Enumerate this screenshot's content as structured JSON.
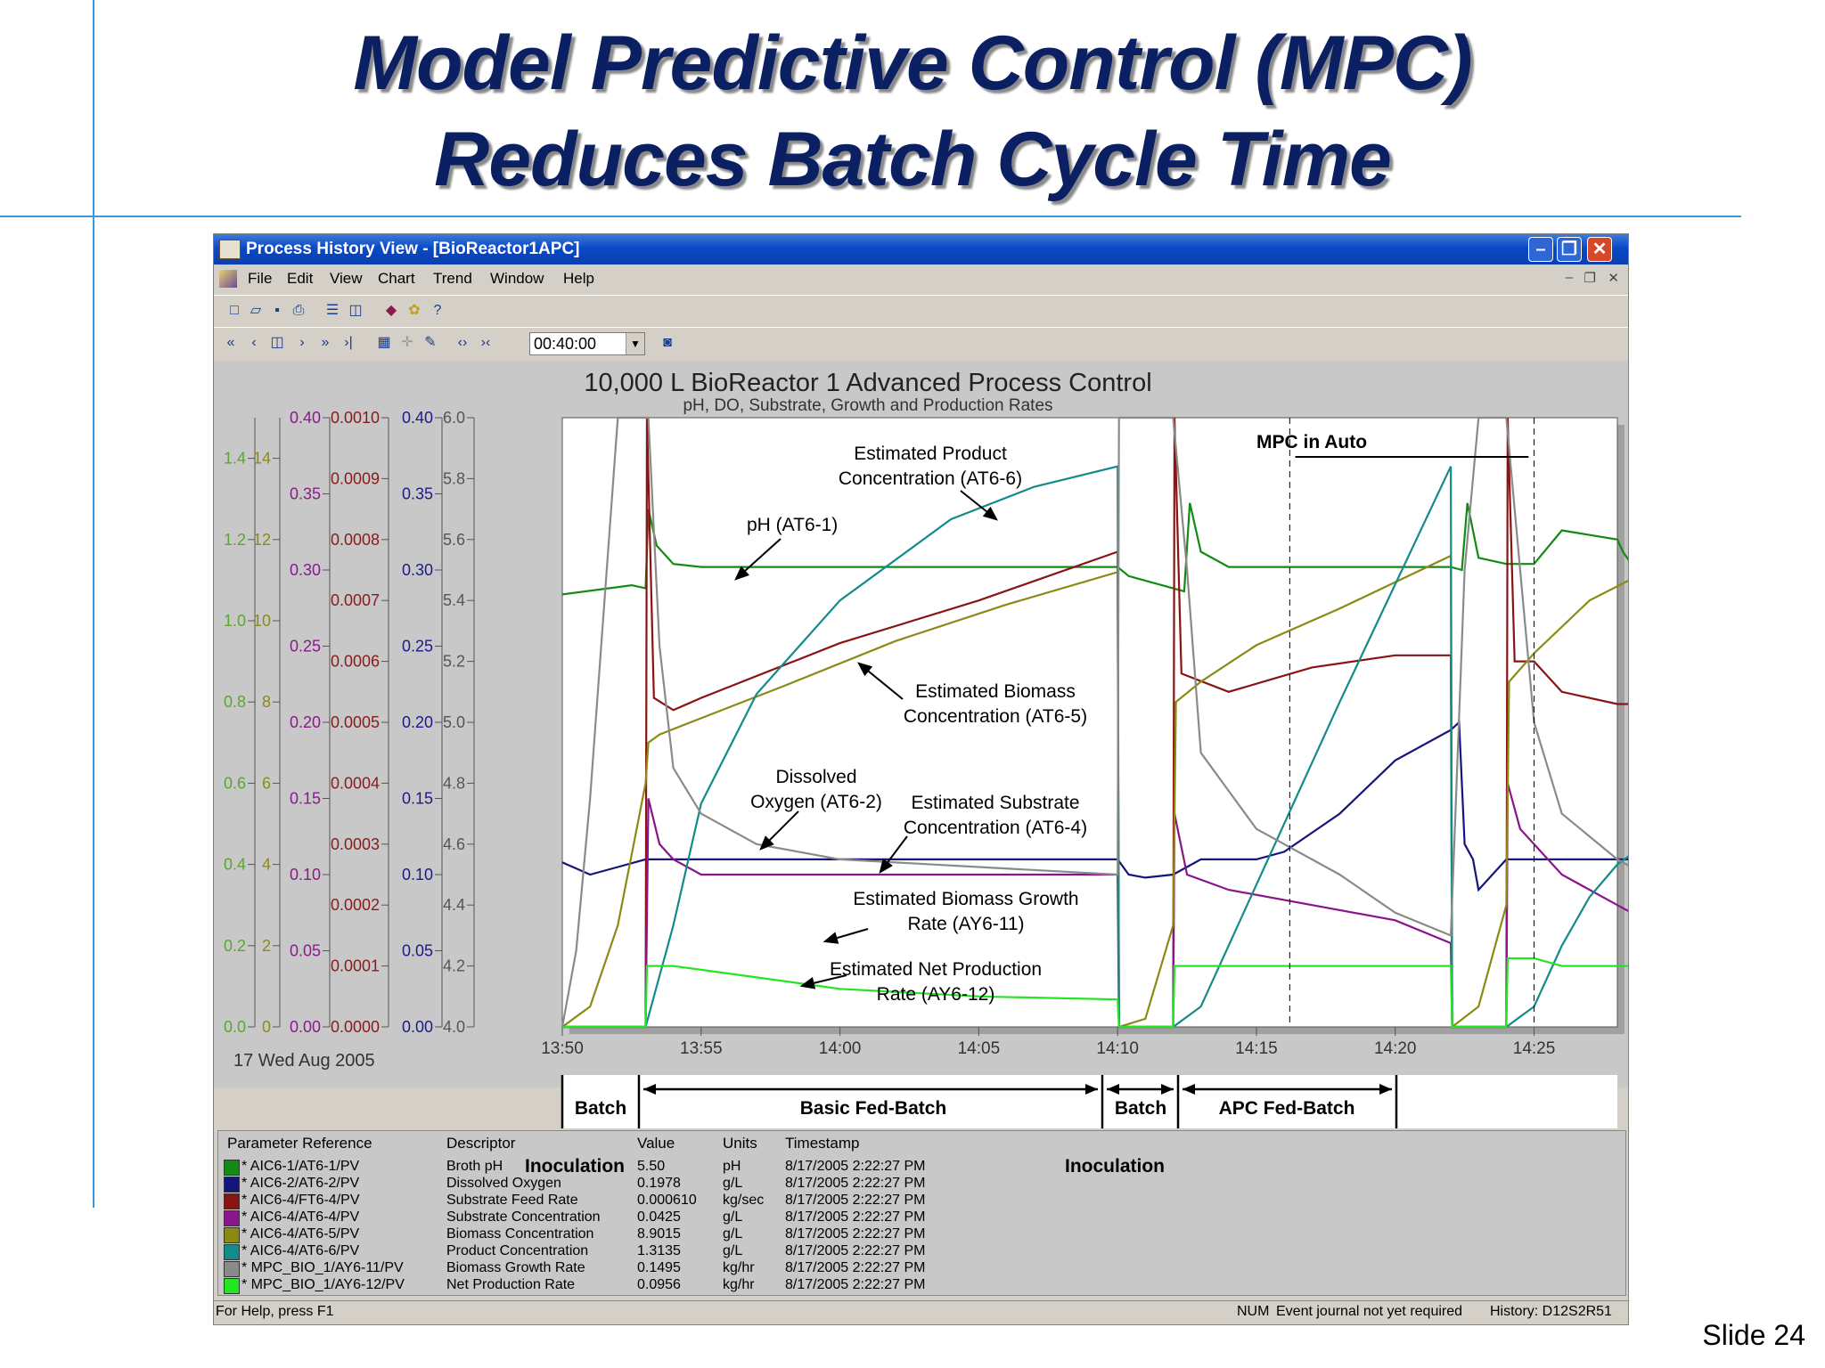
{
  "slide": {
    "title_line1": "Model Predictive Control (MPC)",
    "title_line2": "Reduces Batch Cycle Time",
    "slide_number": "Slide 24"
  },
  "window": {
    "title": "Process History View - [BioReactor1APC]",
    "menus": [
      "File",
      "Edit",
      "View",
      "Chart",
      "Trend",
      "Window",
      "Help"
    ],
    "time_span": "00:40:00",
    "status_left": "For Help, press F1",
    "status_num": "NUM",
    "status_event": "Event journal not yet required",
    "status_history": "History: D12S2R51"
  },
  "chart_data": {
    "type": "line",
    "title": "10,000 L BioReactor 1 Advanced Process Control",
    "subtitle": "pH, DO, Substrate, Growth and Production Rates",
    "date_label": "17 Wed Aug 2005",
    "x_ticks": [
      "13:50",
      "13:55",
      "14:00",
      "14:05",
      "14:10",
      "14:15",
      "14:20",
      "14:25"
    ],
    "xlim": [
      "13:50",
      "14:28"
    ],
    "axes": [
      {
        "color": "#5aa62e",
        "ticks": [
          "0.0",
          "0.2",
          "0.4",
          "0.6",
          "0.8",
          "1.0",
          "1.2",
          "1.4"
        ],
        "range": [
          0,
          1.5
        ]
      },
      {
        "color": "#8a8a1a",
        "ticks": [
          "0",
          "2",
          "4",
          "6",
          "8",
          "10",
          "12",
          "14"
        ],
        "range": [
          0,
          15
        ]
      },
      {
        "color": "#8a1a8a",
        "ticks": [
          "0.00",
          "0.05",
          "0.10",
          "0.15",
          "0.20",
          "0.25",
          "0.30",
          "0.35",
          "0.40"
        ],
        "range": [
          0,
          0.4
        ]
      },
      {
        "color": "#8a1a1a",
        "ticks": [
          "0.0000",
          "0.0001",
          "0.0002",
          "0.0003",
          "0.0004",
          "0.0005",
          "0.0006",
          "0.0007",
          "0.0008",
          "0.0009",
          "0.0010"
        ],
        "range": [
          0,
          0.001
        ]
      },
      {
        "color": "#1a1a8a",
        "ticks": [
          "0.00",
          "0.05",
          "0.10",
          "0.15",
          "0.20",
          "0.25",
          "0.30",
          "0.35",
          "0.40"
        ],
        "range": [
          0,
          0.4
        ]
      },
      {
        "color": "#555555",
        "ticks": [
          "4.0",
          "4.2",
          "4.4",
          "4.6",
          "4.8",
          "5.0",
          "5.2",
          "5.4",
          "5.6",
          "5.8",
          "6.0"
        ],
        "range": [
          4.0,
          6.0
        ]
      }
    ],
    "grid": false,
    "series": [
      {
        "name": "pH (AT6-1)",
        "color": "#138a13",
        "x": [
          0,
          2.5,
          3.0,
          3.1,
          3.4,
          4.0,
          5.0,
          20.0,
          20.4,
          22.4,
          22.6,
          23.0,
          24.0,
          25.0,
          32.0,
          32.4,
          32.6,
          33.0,
          34.0,
          35.0,
          36.0,
          38.0,
          38.2,
          38.5,
          39.0
        ],
        "y": [
          5.42,
          5.45,
          5.44,
          5.7,
          5.58,
          5.52,
          5.51,
          5.51,
          5.48,
          5.43,
          5.72,
          5.56,
          5.51,
          5.51,
          5.51,
          5.5,
          5.72,
          5.54,
          5.52,
          5.52,
          5.63,
          5.6,
          5.56,
          5.52,
          5.52
        ]
      },
      {
        "name": "Dissolved Oxygen (AT6-2)",
        "color": "#14147a",
        "x": [
          0,
          1.0,
          2.0,
          3.0,
          4.0,
          20.0,
          20.4,
          21.0,
          22.0,
          23.0,
          24.0,
          25.0,
          26.0,
          28.0,
          30.0,
          32.0,
          32.3,
          32.5,
          32.8,
          33.0,
          34.0,
          36.0,
          38.0,
          38.5,
          39.0
        ],
        "y": [
          0.108,
          0.1,
          0.105,
          0.11,
          0.11,
          0.11,
          0.1,
          0.098,
          0.1,
          0.11,
          0.11,
          0.11,
          0.115,
          0.14,
          0.175,
          0.195,
          0.2,
          0.12,
          0.11,
          0.09,
          0.11,
          0.11,
          0.11,
          0.11,
          0.11
        ]
      },
      {
        "name": "Substrate Feed Rate",
        "color": "#8a1414",
        "x": [
          0,
          3.0,
          3.05,
          3.3,
          4.0,
          5.0,
          10.0,
          15.0,
          20.0,
          20.05,
          22.0,
          22.05,
          22.3,
          24.0,
          27.0,
          30.0,
          32.0,
          32.05,
          34.0,
          34.05,
          34.3,
          35.0,
          36.0,
          38.0,
          38.5,
          39.0
        ],
        "y": [
          0.0,
          0.0,
          0.001,
          0.00054,
          0.00052,
          0.00054,
          0.00063,
          0.0007,
          0.00078,
          0.0,
          0.0,
          0.001,
          0.00058,
          0.00055,
          0.00059,
          0.00061,
          0.00061,
          0.0,
          0.0,
          0.001,
          0.0006,
          0.0006,
          0.00055,
          0.00053,
          0.00053,
          0.00053
        ]
      },
      {
        "name": "Estimated Substrate Concentration (AT6-4)",
        "color": "#8a148a",
        "x": [
          0,
          2.0,
          3.0,
          3.1,
          3.5,
          4.0,
          5.0,
          20.0,
          20.05,
          22.0,
          22.05,
          22.5,
          24.0,
          27.0,
          30.0,
          32.0,
          32.05,
          34.0,
          34.05,
          34.5,
          36.0,
          38.0,
          39.0
        ],
        "y": [
          0.0,
          0.0,
          0.0,
          0.15,
          0.12,
          0.11,
          0.1,
          0.1,
          0.0,
          0.0,
          0.14,
          0.1,
          0.09,
          0.08,
          0.07,
          0.055,
          0.0,
          0.0,
          0.16,
          0.13,
          0.1,
          0.08,
          0.07
        ]
      },
      {
        "name": "Estimated Biomass Concentration (AT6-5)",
        "color": "#8a8a14",
        "x": [
          0,
          1.0,
          2.0,
          3.0,
          3.1,
          3.5,
          5.0,
          8.0,
          12.0,
          16.0,
          20.0,
          20.05,
          21.0,
          22.0,
          22.1,
          23.0,
          25.0,
          28.0,
          32.0,
          32.05,
          33.0,
          34.0,
          34.1,
          35.0,
          37.0,
          39.0
        ],
        "y": [
          0.0,
          0.5,
          2.5,
          6.0,
          7.0,
          7.2,
          7.6,
          8.4,
          9.5,
          10.4,
          11.2,
          0.0,
          0.2,
          2.5,
          8.0,
          8.5,
          9.4,
          10.3,
          11.6,
          0.0,
          0.5,
          3.0,
          8.5,
          9.2,
          10.5,
          11.2
        ]
      },
      {
        "name": "Estimated Product Concentration (AT6-6)",
        "color": "#148a8a",
        "x": [
          0,
          2.0,
          3.0,
          4.0,
          5.0,
          7.0,
          10.0,
          14.0,
          17.0,
          20.0,
          20.05,
          22.0,
          23.0,
          25.0,
          28.0,
          32.0,
          32.05,
          34.0,
          35.0,
          36.0,
          37.0,
          38.0,
          39.0
        ],
        "y": [
          0.0,
          0.0,
          0.0,
          0.25,
          0.55,
          0.82,
          1.05,
          1.25,
          1.33,
          1.38,
          0.0,
          0.0,
          0.05,
          0.35,
          0.8,
          1.38,
          0.0,
          0.0,
          0.05,
          0.2,
          0.32,
          0.4,
          0.45
        ]
      },
      {
        "name": "Estimated Biomass Growth Rate (AY6-11)",
        "color": "#8a8a8a",
        "x": [
          0,
          0.5,
          1.0,
          2.0,
          2.3,
          2.8,
          3.1,
          3.5,
          4.0,
          5.0,
          7.0,
          10.0,
          15.0,
          20.0,
          20.05,
          20.5,
          21.0,
          21.5,
          22.0,
          22.5,
          23.0,
          25.0,
          28.0,
          30.0,
          32.0,
          32.5,
          33.0,
          33.5,
          34.0,
          34.5,
          35.0,
          36.0,
          38.0,
          39.0
        ],
        "y": [
          0.0,
          0.05,
          0.15,
          0.4,
          0.45,
          0.45,
          0.4,
          0.25,
          0.17,
          0.14,
          0.12,
          0.11,
          0.105,
          0.1,
          0.4,
          0.45,
          0.45,
          0.45,
          0.45,
          0.3,
          0.18,
          0.13,
          0.1,
          0.075,
          0.06,
          0.3,
          0.45,
          0.45,
          0.45,
          0.3,
          0.2,
          0.14,
          0.11,
          0.1
        ]
      },
      {
        "name": "Estimated Net Production Rate (AY6-12)",
        "color": "#22e622",
        "x": [
          0,
          2.5,
          3.0,
          3.05,
          4.0,
          6.0,
          10.0,
          15.0,
          20.0,
          20.05,
          22.0,
          22.05,
          24.0,
          28.0,
          32.0,
          32.05,
          34.0,
          34.05,
          35.0,
          36.0,
          38.0,
          39.0
        ],
        "y": [
          0.0,
          0.0,
          0.0,
          0.04,
          0.04,
          0.035,
          0.025,
          0.02,
          0.018,
          0.0,
          0.0,
          0.04,
          0.04,
          0.04,
          0.04,
          0.0,
          0.0,
          0.045,
          0.045,
          0.04,
          0.04,
          0.04
        ]
      }
    ],
    "annotations": [
      "Estimated Product Concentration (AT6-6)",
      "pH (AT6-1)",
      "Estimated Biomass Concentration (AT6-5)",
      "Dissolved Oxygen (AT6-2)",
      "Estimated Substrate Concentration (AT6-4)",
      "Estimated Biomass Growth Rate (AY6-11)",
      "Estimated Net Production Rate (AY6-12)",
      "MPC in Auto"
    ],
    "phases": [
      "Batch",
      "Basic Fed-Batch",
      "Batch",
      "APC Fed-Batch"
    ],
    "phase_marks": [
      "Inoculation",
      "Inoculation"
    ]
  },
  "chart_labels": {
    "product_l1": "Estimated Product",
    "product_l2": "Concentration (AT6-6)",
    "ph": "pH (AT6-1)",
    "biomass_l1": "Estimated Biomass",
    "biomass_l2": "Concentration (AT6-5)",
    "do_l1": "Dissolved",
    "do_l2": "Oxygen (AT6-2)",
    "substrate_l1": "Estimated Substrate",
    "substrate_l2": "Concentration (AT6-4)",
    "growth_l1": "Estimated Biomass Growth",
    "growth_l2": "Rate (AY6-11)",
    "netprod_l1": "Estimated Net Production",
    "netprod_l2": "Rate (AY6-12)",
    "mpc": "MPC in Auto",
    "phase_batch1": "Batch",
    "phase_basic": "Basic Fed-Batch",
    "phase_batch2": "Batch",
    "phase_apc": "APC Fed-Batch",
    "inoc1": "Inoculation",
    "inoc2": "Inoculation"
  },
  "legend": {
    "headers": {
      "ref": "Parameter Reference",
      "desc": "Descriptor",
      "value": "Value",
      "units": "Units",
      "ts": "Timestamp"
    },
    "rows": [
      {
        "color": "#138a13",
        "ref": "* AIC6-1/AT6-1/PV",
        "desc": "Broth pH",
        "value": "5.50",
        "units": "pH",
        "ts": "8/17/2005 2:22:27 PM"
      },
      {
        "color": "#14147a",
        "ref": "* AIC6-2/AT6-2/PV",
        "desc": "Dissolved Oxygen",
        "value": "0.1978",
        "units": "g/L",
        "ts": "8/17/2005 2:22:27 PM"
      },
      {
        "color": "#8a1414",
        "ref": "* AIC6-4/FT6-4/PV",
        "desc": "Substrate Feed Rate",
        "value": "0.000610",
        "units": "kg/sec",
        "ts": "8/17/2005 2:22:27 PM"
      },
      {
        "color": "#8a148a",
        "ref": "* AIC6-4/AT6-4/PV",
        "desc": "Substrate Concentration",
        "value": "0.0425",
        "units": "g/L",
        "ts": "8/17/2005 2:22:27 PM"
      },
      {
        "color": "#8a8a14",
        "ref": "* AIC6-4/AT6-5/PV",
        "desc": "Biomass Concentration",
        "value": "8.9015",
        "units": "g/L",
        "ts": "8/17/2005 2:22:27 PM"
      },
      {
        "color": "#148a8a",
        "ref": "* AIC6-4/AT6-6/PV",
        "desc": "Product Concentration",
        "value": "1.3135",
        "units": "g/L",
        "ts": "8/17/2005 2:22:27 PM"
      },
      {
        "color": "#8a8a8a",
        "ref": "* MPC_BIO_1/AY6-11/PV",
        "desc": "Biomass Growth Rate",
        "value": "0.1495",
        "units": "kg/hr",
        "ts": "8/17/2005 2:22:27 PM"
      },
      {
        "color": "#22e622",
        "ref": "* MPC_BIO_1/AY6-12/PV",
        "desc": "Net Production Rate",
        "value": "0.0956",
        "units": "kg/hr",
        "ts": "8/17/2005 2:22:27 PM"
      }
    ]
  }
}
